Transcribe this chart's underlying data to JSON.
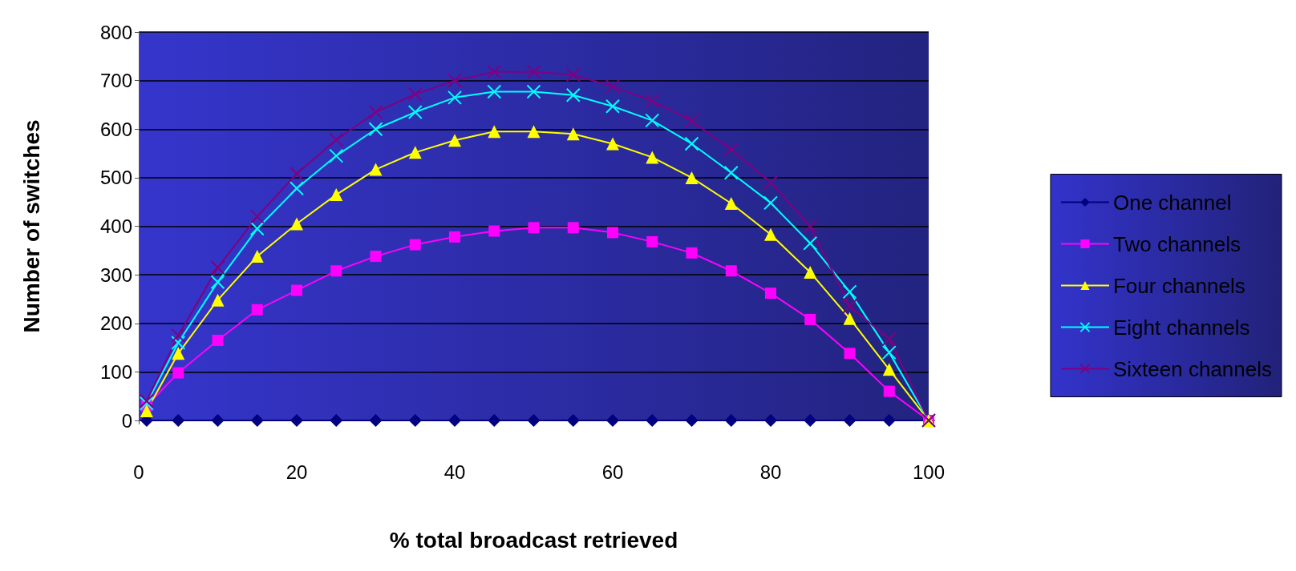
{
  "chart_data": {
    "type": "line",
    "xlabel": "% total broadcast retrieved",
    "ylabel": "Number of switches",
    "x": [
      1,
      5,
      10,
      15,
      20,
      25,
      30,
      35,
      40,
      45,
      50,
      55,
      60,
      65,
      70,
      75,
      80,
      85,
      90,
      95,
      100
    ],
    "series": [
      {
        "name": "One channel",
        "color": "#000080",
        "marker": "diamond",
        "values": [
          0,
          0,
          0,
          0,
          0,
          0,
          0,
          0,
          0,
          0,
          0,
          0,
          0,
          0,
          0,
          0,
          0,
          0,
          0,
          0,
          0
        ]
      },
      {
        "name": "Two channels",
        "color": "#ff00ff",
        "marker": "square",
        "values": [
          30,
          98,
          165,
          228,
          268,
          308,
          338,
          362,
          378,
          390,
          397,
          397,
          387,
          368,
          345,
          308,
          262,
          208,
          138,
          60,
          0
        ]
      },
      {
        "name": "Four channels",
        "color": "#ffff00",
        "marker": "triangle",
        "values": [
          20,
          138,
          248,
          338,
          405,
          465,
          517,
          552,
          577,
          595,
          595,
          590,
          570,
          542,
          500,
          447,
          383,
          305,
          210,
          105,
          0
        ]
      },
      {
        "name": "Eight channels",
        "color": "#00ffff",
        "marker": "cross",
        "values": [
          35,
          160,
          285,
          395,
          478,
          545,
          600,
          635,
          665,
          677,
          677,
          670,
          647,
          618,
          570,
          510,
          448,
          365,
          265,
          140,
          0
        ]
      },
      {
        "name": "Sixteen channels",
        "color": "#800080",
        "marker": "cross",
        "values": [
          40,
          175,
          315,
          420,
          508,
          578,
          635,
          672,
          700,
          718,
          718,
          712,
          688,
          658,
          617,
          558,
          490,
          400,
          235,
          168,
          0
        ]
      }
    ],
    "xlim": [
      0,
      100
    ],
    "xticks": [
      0,
      20,
      40,
      60,
      80,
      100
    ],
    "ylim": [
      0,
      800
    ],
    "yticks": [
      0,
      100,
      200,
      300,
      400,
      500,
      600,
      700,
      800
    ],
    "grid": "y",
    "legend": "right",
    "line_style": "solid"
  }
}
